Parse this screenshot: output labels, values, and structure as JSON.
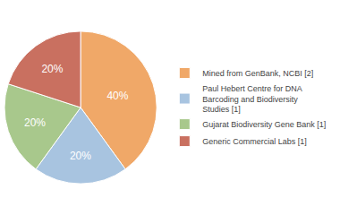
{
  "chart_data": {
    "type": "pie",
    "categories": [
      "Mined from GenBank, NCBI [2]",
      "Paul Hebert Centre for DNA\nBarcoding and Biodiversity\nStudies [1]",
      "Gujarat Biodiversity Gene Bank [1]",
      "Generic Commercial Labs [1]"
    ],
    "values": [
      40,
      20,
      20,
      20
    ],
    "value_labels": [
      "40%",
      "20%",
      "20%",
      "20%"
    ],
    "colors": [
      "#F0A868",
      "#A8C4E0",
      "#A8C88C",
      "#C97060"
    ],
    "data_labels": true,
    "legend": "right"
  }
}
